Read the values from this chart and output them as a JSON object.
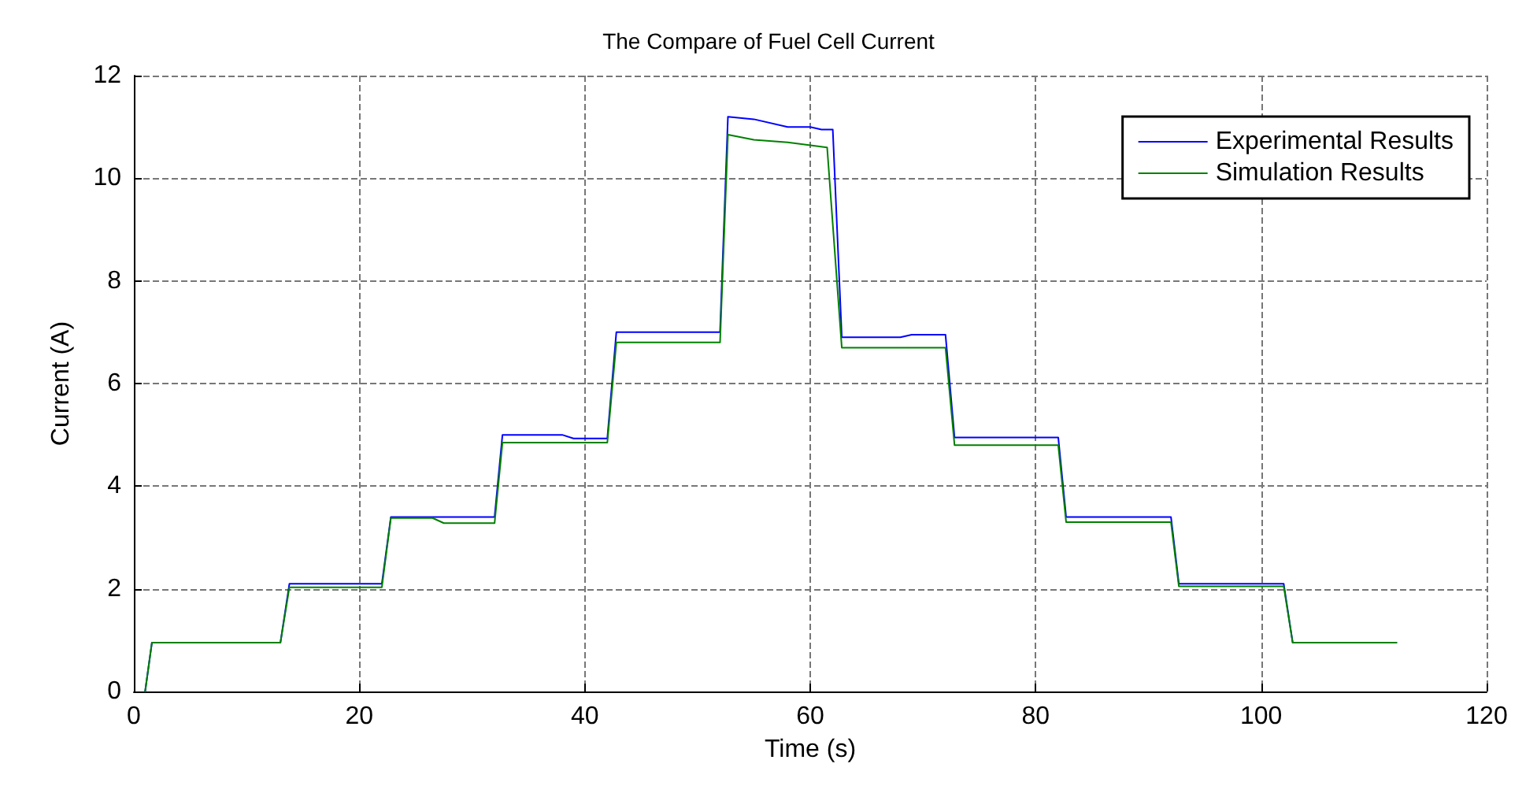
{
  "chart_data": {
    "type": "line",
    "title": "The Compare of Fuel Cell Current",
    "xlabel": "Time (s)",
    "ylabel": "Current (A)",
    "xlim": [
      0,
      120
    ],
    "xticks": [
      0,
      20,
      40,
      60,
      80,
      100,
      120
    ],
    "ylim": [
      0,
      12
    ],
    "yticks": [
      0,
      2,
      4,
      6,
      8,
      10,
      12
    ],
    "grid": true,
    "legend": "top right",
    "marker": "none",
    "line_style": "solid",
    "series": [
      {
        "name": "Experimental Results",
        "color": "#0000ff",
        "x": [
          1,
          1.6,
          13,
          13.8,
          22,
          22.8,
          32,
          32.7,
          38,
          39,
          42,
          42.8,
          52,
          52.7,
          55,
          58,
          60,
          61,
          62,
          62.8,
          68,
          69,
          72,
          72.8,
          82,
          82.7,
          92,
          92.7,
          102,
          102.8,
          112
        ],
        "values": [
          0,
          0.95,
          0.95,
          2.1,
          2.1,
          3.4,
          3.4,
          5.0,
          5.0,
          4.93,
          4.93,
          7.0,
          7.0,
          11.2,
          11.15,
          11.0,
          11.0,
          10.95,
          10.95,
          6.9,
          6.9,
          6.95,
          6.95,
          4.95,
          4.95,
          3.4,
          3.4,
          2.1,
          2.1,
          0.95,
          0.95
        ]
      },
      {
        "name": "Simulation Results",
        "color": "#008000",
        "x": [
          1,
          1.6,
          13,
          13.8,
          22,
          22.8,
          26.5,
          27.5,
          32,
          32.7,
          42,
          42.8,
          52,
          52.7,
          55,
          58,
          61.5,
          62.8,
          72,
          72.8,
          82,
          82.7,
          92,
          92.7,
          102,
          102.8,
          112
        ],
        "values": [
          0,
          0.95,
          0.95,
          2.03,
          2.03,
          3.38,
          3.38,
          3.28,
          3.28,
          4.85,
          4.85,
          6.8,
          6.8,
          10.85,
          10.75,
          10.7,
          10.6,
          6.7,
          6.7,
          4.8,
          4.8,
          3.3,
          3.3,
          2.05,
          2.05,
          0.95,
          0.95
        ]
      }
    ]
  }
}
